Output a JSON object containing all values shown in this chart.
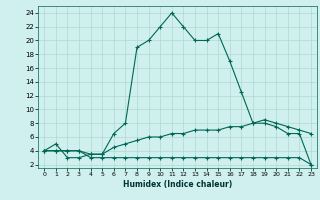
{
  "xlabel": "Humidex (Indice chaleur)",
  "bg_color": "#cff0ee",
  "grid_color": "#b0d8d0",
  "line_color": "#006655",
  "xlim": [
    -0.5,
    23.5
  ],
  "ylim": [
    1.5,
    25
  ],
  "xticks": [
    0,
    1,
    2,
    3,
    4,
    5,
    6,
    7,
    8,
    9,
    10,
    11,
    12,
    13,
    14,
    15,
    16,
    17,
    18,
    19,
    20,
    21,
    22,
    23
  ],
  "yticks": [
    2,
    4,
    6,
    8,
    10,
    12,
    14,
    16,
    18,
    20,
    22,
    24
  ],
  "curve1_x": [
    0,
    1,
    2,
    3,
    4,
    5,
    6,
    7,
    8,
    9,
    10,
    11,
    12,
    13,
    14,
    15,
    16,
    17,
    18,
    19,
    20,
    21,
    22,
    23
  ],
  "curve1_y": [
    4,
    5,
    3,
    3,
    3.5,
    3.5,
    6.5,
    8,
    19,
    20,
    22,
    24,
    22,
    20,
    20,
    21,
    17,
    12.5,
    8,
    8,
    7.5,
    6.5,
    6.5,
    2
  ],
  "curve2_x": [
    0,
    1,
    2,
    3,
    4,
    5,
    6,
    7,
    8,
    9,
    10,
    11,
    12,
    13,
    14,
    15,
    16,
    17,
    18,
    19,
    20,
    21,
    22,
    23
  ],
  "curve2_y": [
    4,
    4,
    4,
    4,
    3.5,
    3.5,
    4.5,
    5,
    5.5,
    6,
    6,
    6.5,
    6.5,
    7,
    7,
    7,
    7.5,
    7.5,
    8,
    8.5,
    8,
    7.5,
    7,
    6.5
  ],
  "curve3_x": [
    0,
    1,
    2,
    3,
    4,
    5,
    6,
    7,
    8,
    9,
    10,
    11,
    12,
    13,
    14,
    15,
    16,
    17,
    18,
    19,
    20,
    21,
    22,
    23
  ],
  "curve3_y": [
    4,
    4,
    4,
    4,
    3,
    3,
    3,
    3,
    3,
    3,
    3,
    3,
    3,
    3,
    3,
    3,
    3,
    3,
    3,
    3,
    3,
    3,
    3,
    2
  ]
}
